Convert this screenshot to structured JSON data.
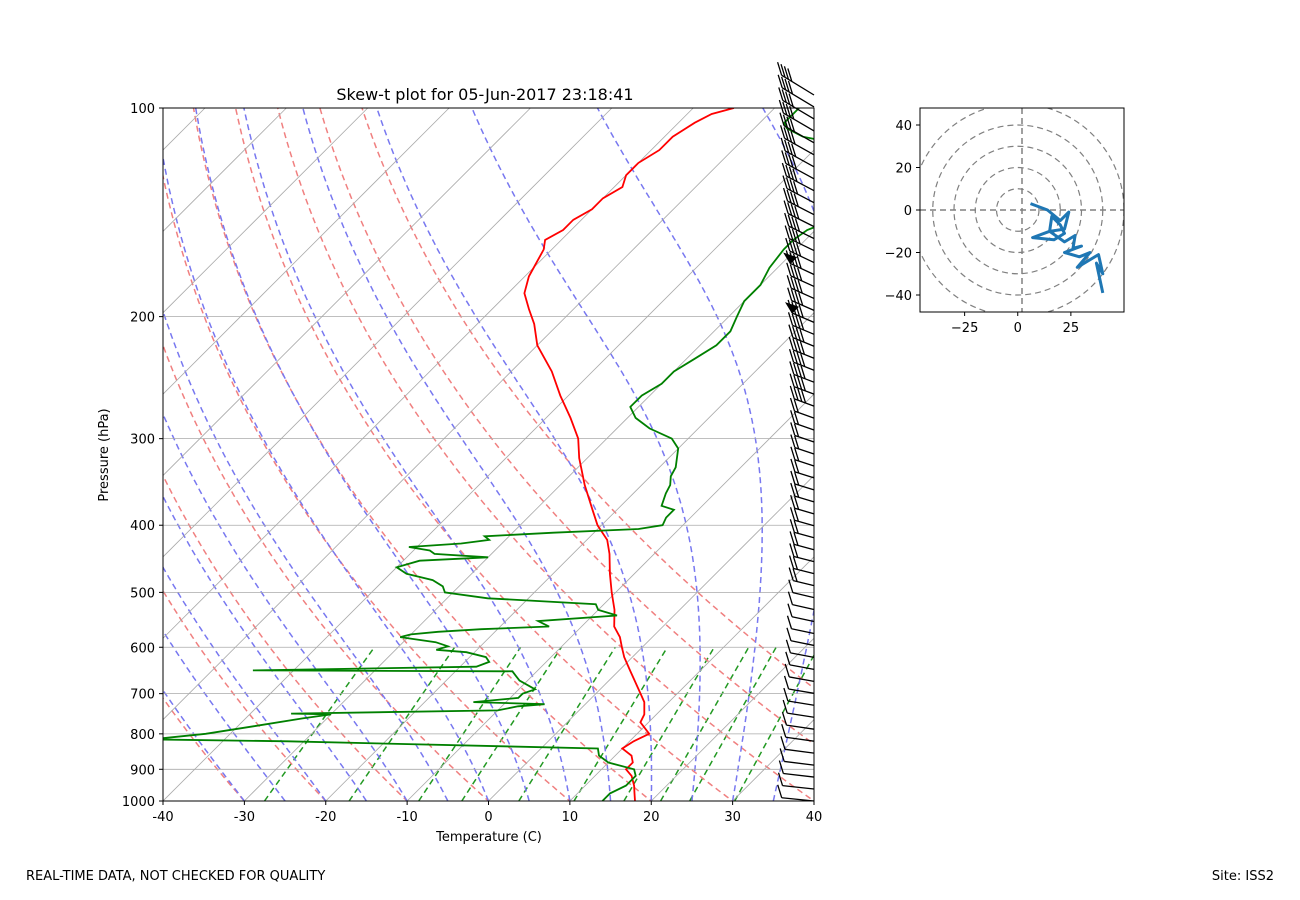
{
  "footer": {
    "left_text": "REAL-TIME DATA, NOT CHECKED FOR QUALITY",
    "right_text": "Site: ISS2"
  },
  "colors": {
    "temperature": "#ff0000",
    "dewpoint": "#008000",
    "dry_adiabat": "#f08080",
    "moist_adiabat": "#7878f0",
    "mixing_ratio": "#229922",
    "isotherm": "#aaaaaa",
    "hodograph": "#1f77b4"
  },
  "chart_data": [
    {
      "type": "line",
      "subtype": "skew-t",
      "title": "Skew-t plot for 05-Jun-2017 23:18:41",
      "xlabel": "Temperature (C)",
      "ylabel": "Pressure (hPa)",
      "xlim": [
        -40,
        40
      ],
      "ylim": [
        1000,
        100
      ],
      "x_ticks": [
        "-40",
        "-30",
        "-20",
        "-10",
        "0",
        "10",
        "20",
        "30",
        "40"
      ],
      "y_ticks": [
        "100",
        "200",
        "300",
        "400",
        "500",
        "600",
        "700",
        "800",
        "900",
        "1000"
      ],
      "grid": true,
      "series": [
        {
          "name": "temperature",
          "points": [
            [
              1000,
              18
            ],
            [
              975,
              17
            ],
            [
              950,
              16
            ],
            [
              920,
              14.5
            ],
            [
              900,
              13
            ],
            [
              880,
              13
            ],
            [
              860,
              12
            ],
            [
              840,
              10
            ],
            [
              820,
              10.5
            ],
            [
              800,
              11.5
            ],
            [
              770,
              9
            ],
            [
              750,
              8.5
            ],
            [
              720,
              7
            ],
            [
              700,
              5.5
            ],
            [
              650,
              1.5
            ],
            [
              620,
              -1
            ],
            [
              600,
              -2.5
            ],
            [
              580,
              -4
            ],
            [
              560,
              -6
            ],
            [
              530,
              -8
            ],
            [
              500,
              -10.5
            ],
            [
              470,
              -13
            ],
            [
              440,
              -15.5
            ],
            [
              420,
              -17.5
            ],
            [
              400,
              -20.5
            ],
            [
              380,
              -23
            ],
            [
              350,
              -27
            ],
            [
              320,
              -31
            ],
            [
              300,
              -33.5
            ],
            [
              280,
              -37
            ],
            [
              260,
              -41
            ],
            [
              240,
              -45
            ],
            [
              220,
              -50
            ],
            [
              205,
              -53
            ],
            [
              195,
              -55.5
            ],
            [
              185,
              -58
            ],
            [
              175,
              -59.5
            ],
            [
              160,
              -61
            ],
            [
              155,
              -62
            ],
            [
              150,
              -61
            ],
            [
              145,
              -61
            ],
            [
              140,
              -60
            ],
            [
              135,
              -60
            ],
            [
              130,
              -59
            ],
            [
              125,
              -60
            ],
            [
              120,
              -60
            ],
            [
              115,
              -59
            ],
            [
              110,
              -59
            ],
            [
              105,
              -58
            ],
            [
              102,
              -57
            ],
            [
              100,
              -55
            ]
          ]
        },
        {
          "name": "dewpoint",
          "points": [
            [
              1000,
              14
            ],
            [
              975,
              14
            ],
            [
              950,
              15
            ],
            [
              920,
              15
            ],
            [
              900,
              14
            ],
            [
              880,
              10
            ],
            [
              860,
              8
            ],
            [
              840,
              7
            ],
            [
              820,
              -32
            ],
            [
              815,
              -49
            ],
            [
              800,
              -43
            ],
            [
              780,
              -38
            ],
            [
              760,
              -33
            ],
            [
              750,
              -30
            ],
            [
              748,
              -35
            ],
            [
              740,
              -10
            ],
            [
              730,
              -8
            ],
            [
              725,
              -5
            ],
            [
              720,
              -14
            ],
            [
              710,
              -9
            ],
            [
              700,
              -9
            ],
            [
              690,
              -8
            ],
            [
              670,
              -11
            ],
            [
              660,
              -12
            ],
            [
              650,
              -13
            ],
            [
              648,
              -45
            ],
            [
              640,
              -18
            ],
            [
              630,
              -17
            ],
            [
              620,
              -18
            ],
            [
              610,
              -21
            ],
            [
              605,
              -25
            ],
            [
              598,
              -24
            ],
            [
              590,
              -26
            ],
            [
              580,
              -31
            ],
            [
              575,
              -30
            ],
            [
              570,
              -27
            ],
            [
              565,
              -22
            ],
            [
              560,
              -14
            ],
            [
              555,
              -15
            ],
            [
              550,
              -16
            ],
            [
              540,
              -7
            ],
            [
              530,
              -10
            ],
            [
              520,
              -11
            ],
            [
              510,
              -25
            ],
            [
              500,
              -31
            ],
            [
              490,
              -32
            ],
            [
              480,
              -34
            ],
            [
              470,
              -38
            ],
            [
              460,
              -40
            ],
            [
              450,
              -38
            ],
            [
              445,
              -30
            ],
            [
              440,
              -37
            ],
            [
              435,
              -38
            ],
            [
              430,
              -41
            ],
            [
              425,
              -35
            ],
            [
              420,
              -32
            ],
            [
              415,
              -33
            ],
            [
              410,
              -25
            ],
            [
              405,
              -15
            ],
            [
              400,
              -12.5
            ],
            [
              390,
              -13
            ],
            [
              380,
              -13
            ],
            [
              375,
              -15
            ],
            [
              360,
              -16
            ],
            [
              350,
              -16.5
            ],
            [
              340,
              -17.5
            ],
            [
              330,
              -18
            ],
            [
              310,
              -20
            ],
            [
              300,
              -22
            ],
            [
              290,
              -26
            ],
            [
              280,
              -29
            ],
            [
              270,
              -31
            ],
            [
              260,
              -31
            ],
            [
              250,
              -30
            ],
            [
              240,
              -30
            ],
            [
              230,
              -29
            ],
            [
              220,
              -28
            ],
            [
              210,
              -28
            ],
            [
              200,
              -29
            ],
            [
              190,
              -30
            ],
            [
              180,
              -30
            ],
            [
              170,
              -31
            ],
            [
              160,
              -31.5
            ],
            [
              155,
              -31.5
            ],
            [
              150,
              -31
            ],
            [
              145,
              -29
            ],
            [
              140,
              -28
            ],
            [
              135,
              -27
            ],
            [
              130,
              -28
            ],
            [
              125,
              -30
            ],
            [
              122,
              -32
            ],
            [
              120,
              -34
            ],
            [
              115,
              -36
            ],
            [
              112,
              -39
            ],
            [
              110,
              -43
            ],
            [
              107,
              -46
            ],
            [
              105,
              -47
            ],
            [
              102,
              -47
            ],
            [
              100,
              -47
            ]
          ]
        }
      ]
    },
    {
      "type": "line",
      "subtype": "hodograph",
      "xlim": [
        -46,
        50
      ],
      "ylim": [
        -48,
        48
      ],
      "x_ticks": [
        "−25",
        "0",
        "25"
      ],
      "y_ticks": [
        "40",
        "20",
        "0",
        "−20",
        "−40"
      ],
      "rings": [
        10,
        20,
        30,
        40,
        50
      ],
      "points": [
        [
          6,
          3
        ],
        [
          14,
          0
        ],
        [
          20,
          -5
        ],
        [
          24,
          -1
        ],
        [
          22,
          -9
        ],
        [
          15,
          -10
        ],
        [
          7,
          -13
        ],
        [
          17,
          -14
        ],
        [
          22,
          -11
        ],
        [
          20,
          -7
        ],
        [
          16,
          -3
        ],
        [
          15,
          -10
        ],
        [
          22,
          -15
        ],
        [
          27,
          -12
        ],
        [
          26,
          -18
        ],
        [
          30,
          -17
        ],
        [
          22,
          -20
        ],
        [
          29,
          -22
        ],
        [
          34,
          -20
        ],
        [
          28,
          -27
        ],
        [
          38,
          -21
        ],
        [
          40,
          -30
        ],
        [
          37,
          -25
        ],
        [
          40,
          -39
        ]
      ]
    }
  ]
}
